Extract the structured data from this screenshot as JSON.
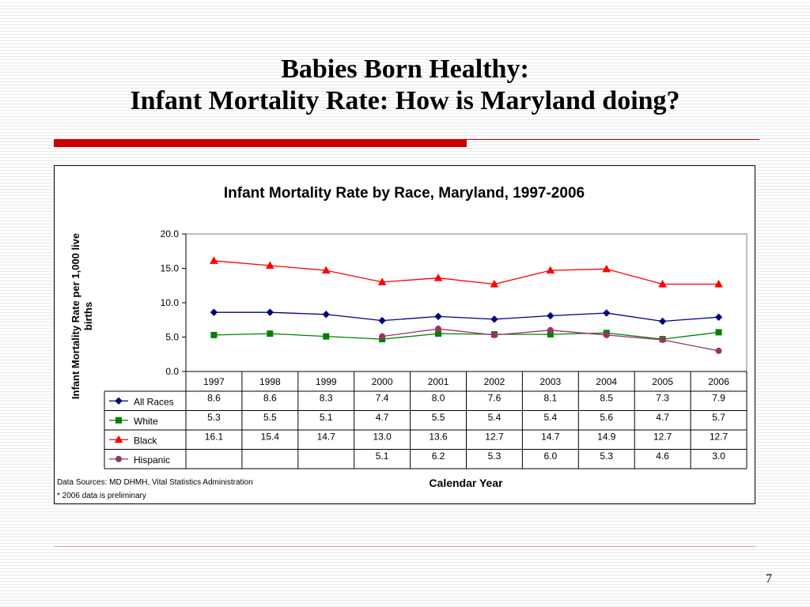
{
  "slide": {
    "title_line1": "Babies Born Healthy:",
    "title_line2": "Infant Mortality Rate: How is Maryland doing?",
    "page_number": "7"
  },
  "colors": {
    "accent_red": "#cc0000",
    "all_races": "#000080",
    "white": "#008000",
    "black": "#ff0000",
    "hispanic": "#993366"
  },
  "chart_data": {
    "type": "line",
    "title": "Infant Mortality Rate by Race, Maryland, 1997-2006",
    "ylabel_line1": "Infant Mortality Rate per 1,000 live",
    "ylabel_line2": "births",
    "xlabel": "Calendar Year",
    "ylim": [
      0,
      20
    ],
    "yticks": [
      "20.0",
      "15.0",
      "10.0",
      "5.0",
      "0.0"
    ],
    "ytick_values": [
      20,
      15,
      10,
      5,
      0
    ],
    "categories": [
      "1997",
      "1998",
      "1999",
      "2000",
      "2001",
      "2002",
      "2003",
      "2004",
      "2005",
      "2006"
    ],
    "grid": false,
    "legend": "data-table",
    "series": [
      {
        "name": "All Races",
        "color": "#000080",
        "marker": "diamond",
        "values": [
          8.6,
          8.6,
          8.3,
          7.4,
          8.0,
          7.6,
          8.1,
          8.5,
          7.3,
          7.9
        ],
        "labels": [
          "8.6",
          "8.6",
          "8.3",
          "7.4",
          "8.0",
          "7.6",
          "8.1",
          "8.5",
          "7.3",
          "7.9"
        ]
      },
      {
        "name": "White",
        "color": "#008000",
        "marker": "square",
        "values": [
          5.3,
          5.5,
          5.1,
          4.7,
          5.5,
          5.4,
          5.4,
          5.6,
          4.7,
          5.7
        ],
        "labels": [
          "5.3",
          "5.5",
          "5.1",
          "4.7",
          "5.5",
          "5.4",
          "5.4",
          "5.6",
          "4.7",
          "5.7"
        ]
      },
      {
        "name": "Black",
        "color": "#ff0000",
        "marker": "triangle",
        "values": [
          16.1,
          15.4,
          14.7,
          13.0,
          13.6,
          12.7,
          14.7,
          14.9,
          12.7,
          12.7
        ],
        "labels": [
          "16.1",
          "15.4",
          "14.7",
          "13.0",
          "13.6",
          "12.7",
          "14.7",
          "14.9",
          "12.7",
          "12.7"
        ]
      },
      {
        "name": "Hispanic",
        "color": "#993366",
        "marker": "circle",
        "values": [
          null,
          null,
          null,
          5.1,
          6.2,
          5.3,
          6.0,
          5.3,
          4.6,
          3.0
        ],
        "labels": [
          "",
          "",
          "",
          "5.1",
          "6.2",
          "5.3",
          "6.0",
          "5.3",
          "4.6",
          "3.0"
        ]
      }
    ],
    "notes": [
      "Data Sources: MD DHMH, Vital Statistics Administration",
      "* 2006 data is preliminary"
    ]
  }
}
